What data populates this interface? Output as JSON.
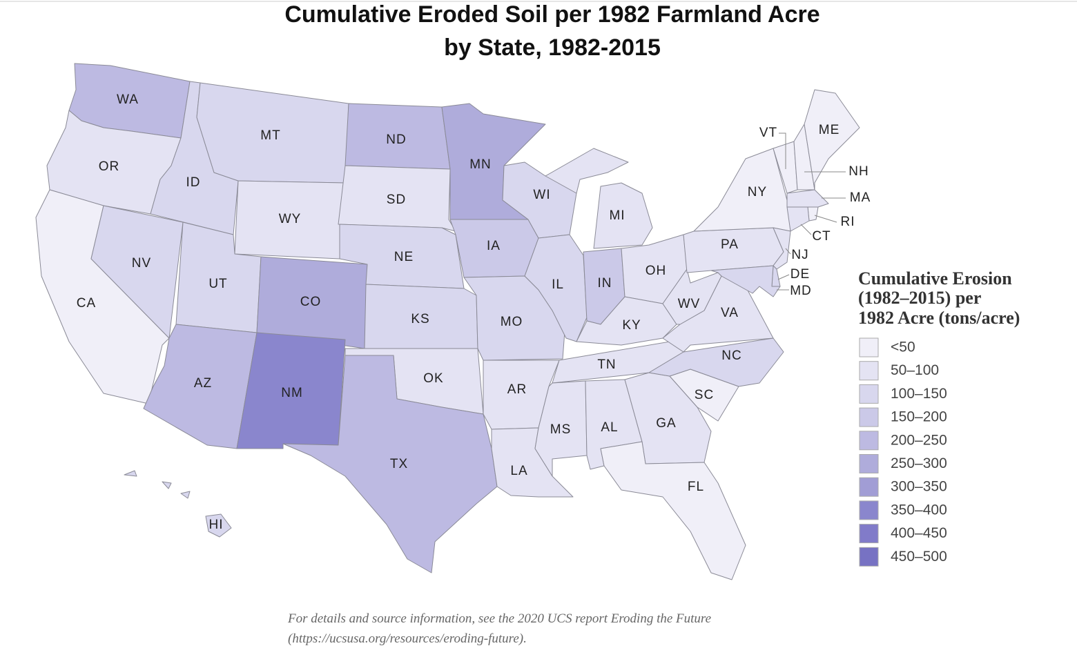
{
  "title": [
    "Cumulative Eroded Soil per 1982 Farmland Acre",
    "by State, 1982-2015"
  ],
  "legend": {
    "title": [
      "Cumulative Erosion",
      "(1982–2015) per",
      "1982 Acre (tons/acre)"
    ],
    "items": [
      {
        "label": "<50",
        "color": "#f0eff8"
      },
      {
        "label": "50–100",
        "color": "#e4e3f3"
      },
      {
        "label": "100–150",
        "color": "#d8d7ee"
      },
      {
        "label": "150–200",
        "color": "#cbc9e8"
      },
      {
        "label": "200–250",
        "color": "#bdbae2"
      },
      {
        "label": "250–300",
        "color": "#afacdb"
      },
      {
        "label": "300–350",
        "color": "#a19dd5"
      },
      {
        "label": "350–400",
        "color": "#8a86cd"
      },
      {
        "label": "400–450",
        "color": "#817bc9"
      },
      {
        "label": "450–500",
        "color": "#7772c3"
      }
    ]
  },
  "states": [
    {
      "abbr": "WA",
      "color": "#bdbae2"
    },
    {
      "abbr": "OR",
      "color": "#e4e3f3"
    },
    {
      "abbr": "CA",
      "color": "#f0eff8"
    },
    {
      "abbr": "NV",
      "color": "#d8d7ee"
    },
    {
      "abbr": "ID",
      "color": "#d8d7ee"
    },
    {
      "abbr": "MT",
      "color": "#d8d7ee"
    },
    {
      "abbr": "WY",
      "color": "#e4e3f3"
    },
    {
      "abbr": "UT",
      "color": "#d8d7ee"
    },
    {
      "abbr": "AZ",
      "color": "#bdbae2"
    },
    {
      "abbr": "CO",
      "color": "#afacdb"
    },
    {
      "abbr": "NM",
      "color": "#8a86cd"
    },
    {
      "abbr": "ND",
      "color": "#bdbae2"
    },
    {
      "abbr": "SD",
      "color": "#e4e3f3"
    },
    {
      "abbr": "NE",
      "color": "#d8d7ee"
    },
    {
      "abbr": "KS",
      "color": "#d8d7ee"
    },
    {
      "abbr": "OK",
      "color": "#e4e3f3"
    },
    {
      "abbr": "TX",
      "color": "#bdbae2"
    },
    {
      "abbr": "MN",
      "color": "#afacdb"
    },
    {
      "abbr": "IA",
      "color": "#cbc9e8"
    },
    {
      "abbr": "MO",
      "color": "#d8d7ee"
    },
    {
      "abbr": "AR",
      "color": "#e4e3f3"
    },
    {
      "abbr": "LA",
      "color": "#e4e3f3"
    },
    {
      "abbr": "WI",
      "color": "#d8d7ee"
    },
    {
      "abbr": "IL",
      "color": "#d8d7ee"
    },
    {
      "abbr": "MI",
      "color": "#e4e3f3"
    },
    {
      "abbr": "IN",
      "color": "#cbc9e8"
    },
    {
      "abbr": "OH",
      "color": "#e4e3f3"
    },
    {
      "abbr": "KY",
      "color": "#e4e3f3"
    },
    {
      "abbr": "TN",
      "color": "#e4e3f3"
    },
    {
      "abbr": "MS",
      "color": "#e4e3f3"
    },
    {
      "abbr": "AL",
      "color": "#e4e3f3"
    },
    {
      "abbr": "GA",
      "color": "#e4e3f3"
    },
    {
      "abbr": "FL",
      "color": "#f0eff8"
    },
    {
      "abbr": "SC",
      "color": "#f0eff8"
    },
    {
      "abbr": "NC",
      "color": "#d8d7ee"
    },
    {
      "abbr": "VA",
      "color": "#e4e3f3"
    },
    {
      "abbr": "WV",
      "color": "#e4e3f3"
    },
    {
      "abbr": "PA",
      "color": "#e4e3f3"
    },
    {
      "abbr": "NY",
      "color": "#f0eff8"
    },
    {
      "abbr": "NJ",
      "color": "#e4e3f3"
    },
    {
      "abbr": "DE",
      "color": "#d8d7ee"
    },
    {
      "abbr": "MD",
      "color": "#d8d7ee"
    },
    {
      "abbr": "VT",
      "color": "#f0eff8"
    },
    {
      "abbr": "NH",
      "color": "#f0eff8"
    },
    {
      "abbr": "ME",
      "color": "#f0eff8"
    },
    {
      "abbr": "MA",
      "color": "#e4e3f3"
    },
    {
      "abbr": "RI",
      "color": "#f0eff8"
    },
    {
      "abbr": "CT",
      "color": "#e4e3f3"
    },
    {
      "abbr": "HI",
      "color": "#d8d7ee"
    }
  ],
  "footnote": [
    "For details and source information, see the 2020 UCS report Eroding the Future",
    "(https://ucsusa.org/resources/eroding-future)."
  ]
}
